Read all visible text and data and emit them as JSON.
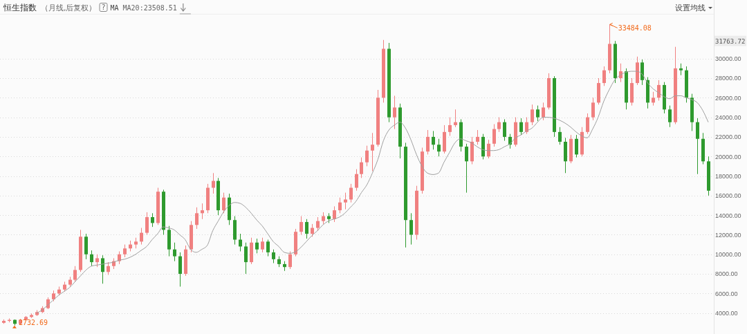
{
  "chart_data": {
    "type": "candlestick",
    "title": "恒生指数",
    "subtitle": "（月线,后复权）",
    "categories": [
      null,
      null,
      null,
      null,
      null,
      null,
      null,
      null,
      null,
      null,
      null,
      null,
      null,
      null,
      null,
      null,
      null,
      null,
      null,
      null,
      null,
      null,
      null,
      null,
      null,
      null,
      null,
      null,
      null,
      null,
      null,
      null,
      null,
      null,
      null,
      null,
      null,
      null,
      null,
      null,
      null,
      null,
      null,
      null,
      null,
      null,
      null,
      null,
      null,
      null,
      null,
      null,
      null,
      null,
      null,
      null,
      null,
      null,
      null,
      null,
      null,
      null,
      null,
      null,
      null,
      null,
      null,
      null,
      null,
      null,
      null,
      null,
      null,
      null,
      null,
      null,
      null,
      null,
      null,
      null,
      null,
      null,
      null,
      null,
      null,
      null,
      null,
      null,
      null,
      null,
      null,
      null,
      null,
      null,
      null,
      null,
      null,
      null,
      null,
      null,
      null,
      null,
      null,
      null,
      null,
      null,
      null,
      null,
      null,
      null,
      null,
      null,
      null,
      null,
      null,
      null,
      null,
      null,
      null,
      null,
      null,
      null,
      null,
      null,
      null,
      null,
      null,
      null,
      null
    ],
    "ohlc": [
      [
        3000,
        3350,
        2900,
        3200
      ],
      [
        3200,
        3450,
        3050,
        3300
      ],
      [
        3300,
        3350,
        2732.69,
        2900
      ],
      [
        2900,
        3400,
        2850,
        3300
      ],
      [
        3300,
        3700,
        3200,
        3600
      ],
      [
        3600,
        3950,
        3500,
        3800
      ],
      [
        3800,
        4300,
        3700,
        4100
      ],
      [
        4100,
        4700,
        4000,
        4500
      ],
      [
        4500,
        5600,
        4400,
        5400
      ],
      [
        5400,
        6300,
        5200,
        6000
      ],
      [
        6000,
        6700,
        5800,
        6400
      ],
      [
        6400,
        7200,
        6200,
        6900
      ],
      [
        6900,
        7700,
        6700,
        7400
      ],
      [
        7400,
        8800,
        7200,
        8400
      ],
      [
        8400,
        12500,
        8200,
        11800
      ],
      [
        11800,
        12100,
        9500,
        10000
      ],
      [
        10000,
        10400,
        8800,
        9200
      ],
      [
        9200,
        10000,
        8700,
        9600
      ],
      [
        9600,
        9900,
        7000,
        8200
      ],
      [
        8200,
        9200,
        7900,
        8800
      ],
      [
        8800,
        9600,
        8500,
        9300
      ],
      [
        9300,
        10300,
        9000,
        10000
      ],
      [
        10000,
        11000,
        9700,
        10600
      ],
      [
        10600,
        11400,
        10300,
        11000
      ],
      [
        11000,
        11700,
        10600,
        11300
      ],
      [
        11300,
        12700,
        11000,
        12200
      ],
      [
        12200,
        14300,
        12000,
        13800
      ],
      [
        13800,
        14200,
        12800,
        13200
      ],
      [
        13200,
        16800,
        13000,
        16400
      ],
      [
        16400,
        16600,
        12000,
        12500
      ],
      [
        12500,
        12900,
        9800,
        10500
      ],
      [
        10500,
        11200,
        9300,
        9800
      ],
      [
        9800,
        10200,
        6700,
        8000
      ],
      [
        8000,
        10900,
        7800,
        10500
      ],
      [
        10500,
        13400,
        10200,
        13000
      ],
      [
        13000,
        14800,
        12600,
        14200
      ],
      [
        14200,
        15200,
        13600,
        14500
      ],
      [
        14500,
        17200,
        14200,
        16800
      ],
      [
        16800,
        18300,
        16200,
        17500
      ],
      [
        17500,
        17800,
        14000,
        14500
      ],
      [
        14500,
        16300,
        14200,
        15800
      ],
      [
        15800,
        16200,
        13000,
        13500
      ],
      [
        13500,
        13900,
        11000,
        11500
      ],
      [
        11500,
        12100,
        10300,
        10800
      ],
      [
        10800,
        11200,
        8000,
        9200
      ],
      [
        9200,
        11700,
        9000,
        11200
      ],
      [
        11200,
        11600,
        10100,
        10500
      ],
      [
        10500,
        11700,
        10200,
        11300
      ],
      [
        11300,
        11500,
        9800,
        10200
      ],
      [
        10200,
        10500,
        9100,
        9500
      ],
      [
        9500,
        9800,
        8700,
        9000
      ],
      [
        9000,
        9300,
        8300,
        8700
      ],
      [
        8700,
        10300,
        8500,
        10000
      ],
      [
        10000,
        12600,
        9800,
        12300
      ],
      [
        12300,
        13900,
        12000,
        13300
      ],
      [
        13300,
        13600,
        11600,
        12100
      ],
      [
        12100,
        13100,
        11800,
        12700
      ],
      [
        12700,
        13800,
        12400,
        13400
      ],
      [
        13400,
        14300,
        13100,
        13900
      ],
      [
        13900,
        14200,
        13200,
        13600
      ],
      [
        13600,
        14900,
        13300,
        14500
      ],
      [
        14500,
        15800,
        14200,
        15300
      ],
      [
        15300,
        16300,
        14600,
        15600
      ],
      [
        15600,
        17200,
        15300,
        16800
      ],
      [
        16800,
        18700,
        16500,
        18200
      ],
      [
        18200,
        19900,
        17800,
        19400
      ],
      [
        19400,
        21100,
        19000,
        20600
      ],
      [
        20600,
        22400,
        18500,
        21200
      ],
      [
        21200,
        26800,
        21000,
        26000
      ],
      [
        26000,
        31900,
        25500,
        31000
      ],
      [
        31000,
        31600,
        23500,
        24000
      ],
      [
        24000,
        26200,
        22800,
        25000
      ],
      [
        25000,
        25400,
        19800,
        21000
      ],
      [
        21000,
        21400,
        10700,
        13500
      ],
      [
        13500,
        14200,
        11000,
        12000
      ],
      [
        12000,
        17000,
        11500,
        16500
      ],
      [
        16500,
        20900,
        16200,
        20500
      ],
      [
        20500,
        22700,
        20200,
        22000
      ],
      [
        22000,
        22600,
        20700,
        21200
      ],
      [
        21200,
        21800,
        20000,
        20500
      ],
      [
        20500,
        23200,
        20300,
        22500
      ],
      [
        22500,
        24000,
        22100,
        23200
      ],
      [
        23200,
        24800,
        23000,
        23500
      ],
      [
        23500,
        23800,
        20500,
        21000
      ],
      [
        21000,
        21300,
        16300,
        19500
      ],
      [
        19500,
        22000,
        19200,
        21500
      ],
      [
        21500,
        22700,
        21200,
        22000
      ],
      [
        22000,
        22300,
        19700,
        20000
      ],
      [
        20000,
        21700,
        19800,
        21300
      ],
      [
        21300,
        23300,
        21000,
        22800
      ],
      [
        22800,
        24000,
        22500,
        23500
      ],
      [
        23500,
        23800,
        21600,
        22000
      ],
      [
        22000,
        22300,
        20800,
        21200
      ],
      [
        21200,
        24000,
        21000,
        23500
      ],
      [
        23500,
        23900,
        22200,
        22500
      ],
      [
        22500,
        24000,
        22300,
        23500
      ],
      [
        23500,
        25300,
        23200,
        24800
      ],
      [
        24800,
        25200,
        23600,
        24000
      ],
      [
        24000,
        25500,
        23700,
        25000
      ],
      [
        25000,
        28500,
        24800,
        28000
      ],
      [
        28000,
        28200,
        22000,
        22500
      ],
      [
        22500,
        23000,
        21200,
        21500
      ],
      [
        21500,
        21900,
        18300,
        19500
      ],
      [
        19500,
        22200,
        19300,
        21800
      ],
      [
        21800,
        22200,
        19900,
        20200
      ],
      [
        20200,
        23000,
        20000,
        22500
      ],
      [
        22500,
        24400,
        22300,
        24000
      ],
      [
        24000,
        26000,
        23700,
        25500
      ],
      [
        25500,
        28000,
        25300,
        27500
      ],
      [
        27500,
        29200,
        27200,
        28800
      ],
      [
        28800,
        33484.08,
        28500,
        31500
      ],
      [
        31500,
        31800,
        27500,
        28000
      ],
      [
        28000,
        29500,
        27600,
        28700
      ],
      [
        28700,
        29000,
        24800,
        25500
      ],
      [
        25500,
        28000,
        25200,
        27500
      ],
      [
        27500,
        30200,
        27300,
        29600
      ],
      [
        29600,
        29900,
        27300,
        27800
      ],
      [
        27800,
        28100,
        24900,
        25500
      ],
      [
        25500,
        26600,
        25200,
        26000
      ],
      [
        26000,
        27800,
        25700,
        27300
      ],
      [
        27300,
        27600,
        24400,
        24800
      ],
      [
        24800,
        25200,
        23000,
        23500
      ],
      [
        23500,
        31200,
        23300,
        29000
      ],
      [
        29000,
        29500,
        28300,
        28800
      ],
      [
        28800,
        29200,
        25500,
        26000
      ],
      [
        26000,
        26400,
        22600,
        23500
      ],
      [
        23500,
        23900,
        18200,
        21800
      ],
      [
        21800,
        22400,
        19200,
        19500
      ],
      [
        19500,
        20000,
        16000,
        16500
      ]
    ],
    "colors": [
      "#f08080",
      "#f08080",
      "#2e9a2e",
      "#f08080",
      "#f08080",
      "#f08080",
      "#f08080",
      "#f08080",
      "#f08080",
      "#f08080",
      "#f08080",
      "#f08080",
      "#f08080",
      "#f08080",
      "#f08080",
      "#2e9a2e",
      "#2e9a2e",
      "#f08080",
      "#2e9a2e",
      "#f08080",
      "#f08080",
      "#f08080",
      "#f08080",
      "#f08080",
      "#f08080",
      "#f08080",
      "#f08080",
      "#2e9a2e",
      "#f08080",
      "#2e9a2e",
      "#2e9a2e",
      "#2e9a2e",
      "#2e9a2e",
      "#f08080",
      "#f08080",
      "#f08080",
      "#f08080",
      "#f08080",
      "#f08080",
      "#2e9a2e",
      "#f08080",
      "#2e9a2e",
      "#2e9a2e",
      "#2e9a2e",
      "#2e9a2e",
      "#f08080",
      "#2e9a2e",
      "#f08080",
      "#2e9a2e",
      "#2e9a2e",
      "#2e9a2e",
      "#2e9a2e",
      "#f08080",
      "#f08080",
      "#f08080",
      "#2e9a2e",
      "#f08080",
      "#f08080",
      "#f08080",
      "#2e9a2e",
      "#f08080",
      "#f08080",
      "#f08080",
      "#f08080",
      "#f08080",
      "#f08080",
      "#f08080",
      "#f08080",
      "#f08080",
      "#f08080",
      "#2e9a2e",
      "#f08080",
      "#2e9a2e",
      "#2e9a2e",
      "#2e9a2e",
      "#f08080",
      "#f08080",
      "#f08080",
      "#2e9a2e",
      "#2e9a2e",
      "#f08080",
      "#f08080",
      "#f08080",
      "#2e9a2e",
      "#2e9a2e",
      "#f08080",
      "#f08080",
      "#2e9a2e",
      "#f08080",
      "#f08080",
      "#f08080",
      "#2e9a2e",
      "#2e9a2e",
      "#f08080",
      "#2e9a2e",
      "#f08080",
      "#f08080",
      "#2e9a2e",
      "#f08080",
      "#f08080",
      "#2e9a2e",
      "#2e9a2e",
      "#2e9a2e",
      "#f08080",
      "#2e9a2e",
      "#f08080",
      "#f08080",
      "#f08080",
      "#f08080",
      "#f08080",
      "#f08080",
      "#2e9a2e",
      "#f08080",
      "#2e9a2e",
      "#f08080",
      "#f08080",
      "#2e9a2e",
      "#2e9a2e",
      "#f08080",
      "#f08080",
      "#2e9a2e",
      "#2e9a2e",
      "#f08080",
      "#2e9a2e",
      "#2e9a2e",
      "#2e9a2e",
      "#2e9a2e",
      "#2e9a2e",
      "#2e9a2e"
    ],
    "series": [
      {
        "type": "line",
        "name": "MA20:23508.51",
        "color": "#a0a0a0",
        "values": [
          null,
          null,
          null,
          null,
          null,
          null,
          4000,
          4300,
          4800,
          5300,
          5800,
          6200,
          6600,
          7200,
          7800,
          8400,
          8800,
          8900,
          9000,
          9100,
          9200,
          9400,
          9500,
          9700,
          10000,
          10400,
          10800,
          11500,
          12100,
          12800,
          12700,
          12500,
          12000,
          11500,
          10500,
          10200,
          10500,
          10900,
          12400,
          13400,
          14350,
          15000,
          15300,
          15200,
          14800,
          14200,
          13500,
          12900,
          12100,
          11300,
          10800,
          10200,
          10100,
          10250,
          10700,
          11300,
          11900,
          12400,
          13000,
          13400,
          13600,
          13800,
          14200,
          14800,
          15400,
          16300,
          17100,
          18300,
          19700,
          21600,
          22700,
          23200,
          23500,
          22900,
          21700,
          20200,
          19000,
          18300,
          18150,
          18300,
          19400,
          20400,
          21400,
          21800,
          21600,
          21400,
          21000,
          20700,
          20600,
          20600,
          20700,
          21000,
          21300,
          21900,
          22200,
          22600,
          22900,
          23500,
          24000,
          24000,
          23900,
          23700,
          23400,
          23000,
          22500,
          22100,
          21900,
          22800,
          24000,
          25600,
          26800,
          27800,
          28300,
          28600,
          28700,
          28700,
          28400,
          27500,
          26900,
          26500,
          26100,
          25900,
          26200,
          26200,
          26000,
          25800,
          25500,
          24700,
          23500
        ]
      }
    ],
    "ylim": [
      2000,
      34500
    ],
    "yticks": [
      {
        "value": 4000,
        "label": "4000.00"
      },
      {
        "value": 6000,
        "label": "6000.00"
      },
      {
        "value": 8000,
        "label": "8000.00"
      },
      {
        "value": 10000,
        "label": "10000.00"
      },
      {
        "value": 12000,
        "label": "12000.00"
      },
      {
        "value": 14000,
        "label": "14000.00"
      },
      {
        "value": 16000,
        "label": "16000.00"
      },
      {
        "value": 18000,
        "label": "18000.00"
      },
      {
        "value": 20000,
        "label": "20000.00"
      },
      {
        "value": 22000,
        "label": "22000.00"
      },
      {
        "value": 24000,
        "label": "24000.00"
      },
      {
        "value": 26000,
        "label": "26000.00"
      },
      {
        "value": 28000,
        "label": "28000.00"
      },
      {
        "value": 30000,
        "label": "30000.00"
      }
    ],
    "grid": "y",
    "legend": "top left",
    "annotations": [
      "MA",
      "?",
      "设置均线",
      "33484.08",
      "2732.69",
      "31763.72"
    ]
  }
}
